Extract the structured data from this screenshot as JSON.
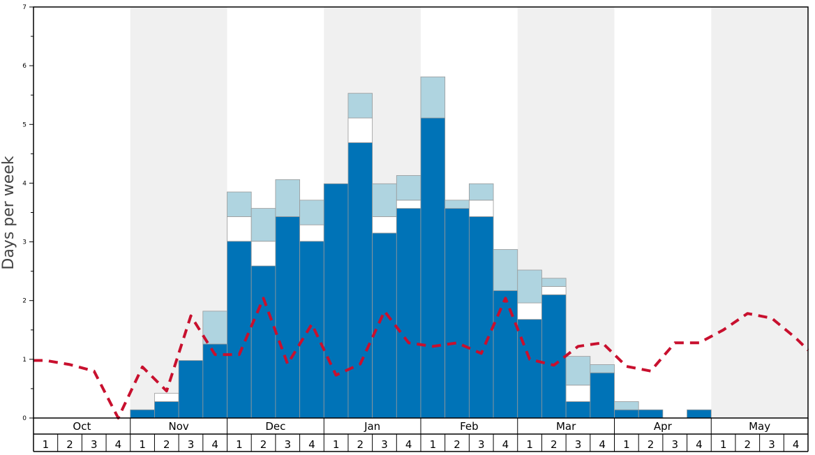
{
  "chart_data": {
    "type": "bar",
    "title": "",
    "xlabel": "",
    "ylabel": "Days per week",
    "ylim": [
      0,
      7
    ],
    "yticks": [
      "0",
      "1",
      "2",
      "3",
      "4",
      "5",
      "6",
      "7"
    ],
    "months": [
      "Oct",
      "Nov",
      "Dec",
      "Jan",
      "Feb",
      "Mar",
      "Apr",
      "May"
    ],
    "week_labels": [
      "1",
      "2",
      "3",
      "4",
      "1",
      "2",
      "3",
      "4",
      "1",
      "2",
      "3",
      "4",
      "1",
      "2",
      "3",
      "4",
      "1",
      "2",
      "3",
      "4",
      "1",
      "2",
      "3",
      "4",
      "1",
      "2",
      "3",
      "4",
      "1",
      "2",
      "3",
      "4"
    ],
    "shaded_months": [
      "Nov",
      "Jan",
      "Mar",
      "May"
    ],
    "grid": false,
    "legend": "none",
    "colors": {
      "dark": "#0073b7",
      "white": "#ffffff",
      "light": "#afd4e0",
      "line": "#c8102e",
      "shade": "#f0f0f0",
      "bar_edge": "#999999"
    },
    "series": [
      {
        "kind": "stacked-bar-dark",
        "values": [
          0,
          0,
          0,
          0,
          0.14,
          0.28,
          0.98,
          1.26,
          3.01,
          2.59,
          3.43,
          3.01,
          3.99,
          4.69,
          3.15,
          3.57,
          5.11,
          3.57,
          3.43,
          2.17,
          1.68,
          2.1,
          0.28,
          0.77,
          0.14,
          0.14,
          0,
          0.14,
          0,
          0,
          0,
          0
        ]
      },
      {
        "kind": "stacked-bar-white",
        "values": [
          0,
          0,
          0,
          0,
          0,
          0.14,
          0,
          0,
          0.42,
          0.42,
          0,
          0.28,
          0,
          0.42,
          0.28,
          0.14,
          0,
          0,
          0.28,
          0,
          0.28,
          0.14,
          0.28,
          0,
          0,
          0,
          0,
          0,
          0,
          0,
          0,
          0
        ]
      },
      {
        "kind": "stacked-bar-light",
        "values": [
          0,
          0,
          0,
          0,
          0,
          0,
          0,
          0.56,
          0.42,
          0.56,
          0.63,
          0.42,
          0,
          0.42,
          0.56,
          0.42,
          0.7,
          0.14,
          0.28,
          0.7,
          0.56,
          0.14,
          0.49,
          0.14,
          0.14,
          0,
          0,
          0,
          0,
          0,
          0,
          0
        ]
      },
      {
        "kind": "dashed-line",
        "values": [
          0.98,
          0.91,
          0.8,
          0,
          0.87,
          0.46,
          1.74,
          1.08,
          1.08,
          2.04,
          0.92,
          1.6,
          0.73,
          0.92,
          1.82,
          1.28,
          1.22,
          1.28,
          1.1,
          2.04,
          1.0,
          0.9,
          1.22,
          1.28,
          0.88,
          0.8,
          1.28,
          1.28,
          1.5,
          1.78,
          1.7,
          1.36
        ]
      }
    ]
  }
}
